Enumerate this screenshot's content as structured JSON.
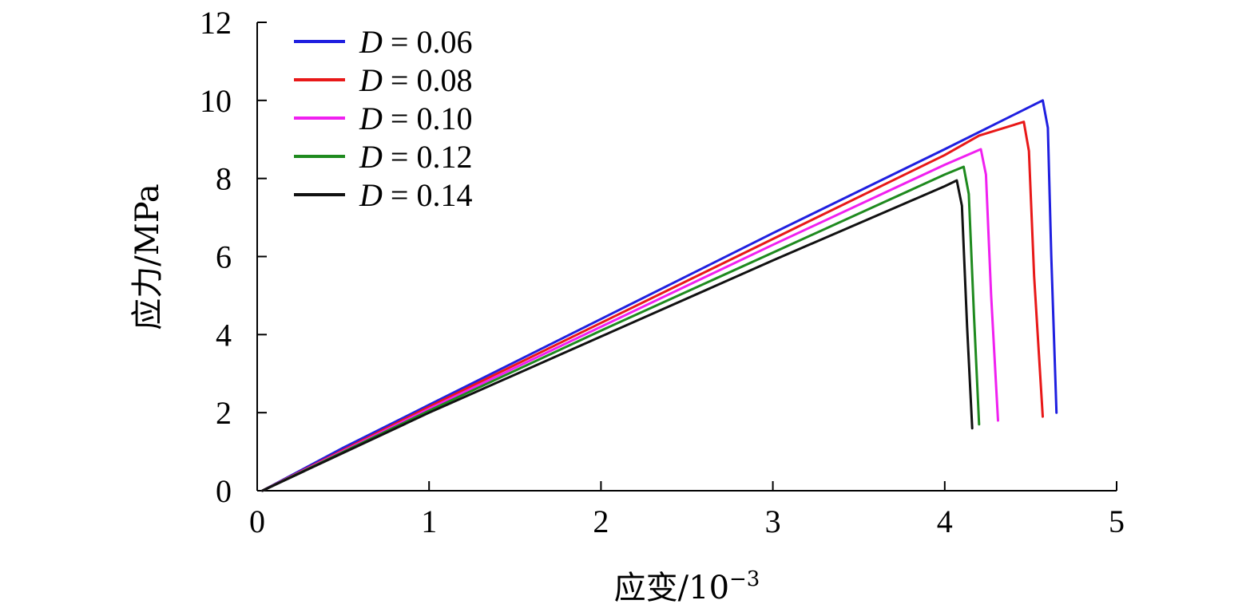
{
  "chart_data": {
    "type": "line",
    "xlabel": "应变/10",
    "xlabel_exponent": "−3",
    "ylabel": "应力/MPa",
    "xlim": [
      0,
      5
    ],
    "ylim": [
      0,
      12
    ],
    "x_ticks": [
      0,
      1,
      2,
      3,
      4,
      5
    ],
    "y_ticks": [
      0,
      2,
      4,
      6,
      8,
      10,
      12
    ],
    "grid": false,
    "legend_position": "top-left",
    "series": [
      {
        "name": "D = 0.06",
        "var": "D",
        "value": "= 0.06",
        "color": "#1f1fe0",
        "x": [
          0.03,
          0.5,
          1.0,
          2.0,
          3.0,
          4.0,
          4.57,
          4.6,
          4.62,
          4.65
        ],
        "y": [
          0.0,
          1.1,
          2.2,
          4.4,
          6.6,
          8.75,
          10.0,
          9.3,
          6.0,
          2.0
        ]
      },
      {
        "name": "D = 0.08",
        "var": "D",
        "value": "= 0.08",
        "color": "#e81818",
        "x": [
          0.03,
          1.0,
          2.0,
          3.0,
          4.0,
          4.2,
          4.46,
          4.49,
          4.52,
          4.57
        ],
        "y": [
          0.0,
          2.15,
          4.3,
          6.45,
          8.6,
          9.1,
          9.45,
          8.7,
          5.5,
          1.9
        ]
      },
      {
        "name": "D = 0.10",
        "var": "D",
        "value": "= 0.10",
        "color": "#f020f0",
        "x": [
          0.03,
          1.0,
          2.0,
          3.0,
          4.0,
          4.21,
          4.24,
          4.27,
          4.31
        ],
        "y": [
          0.0,
          2.1,
          4.2,
          6.3,
          8.35,
          8.75,
          8.1,
          5.0,
          1.8
        ]
      },
      {
        "name": "D = 0.12",
        "var": "D",
        "value": "= 0.12",
        "color": "#1e8a1e",
        "x": [
          0.03,
          1.0,
          2.0,
          3.0,
          4.0,
          4.11,
          4.14,
          4.17,
          4.2
        ],
        "y": [
          0.0,
          2.05,
          4.1,
          6.1,
          8.1,
          8.3,
          7.6,
          4.5,
          1.7
        ]
      },
      {
        "name": "D = 0.14",
        "var": "D",
        "value": "= 0.14",
        "color": "#111111",
        "x": [
          0.03,
          1.0,
          2.0,
          3.0,
          4.0,
          4.07,
          4.1,
          4.13,
          4.16
        ],
        "y": [
          0.0,
          2.0,
          3.95,
          5.9,
          7.8,
          7.95,
          7.3,
          4.2,
          1.6
        ]
      }
    ]
  }
}
